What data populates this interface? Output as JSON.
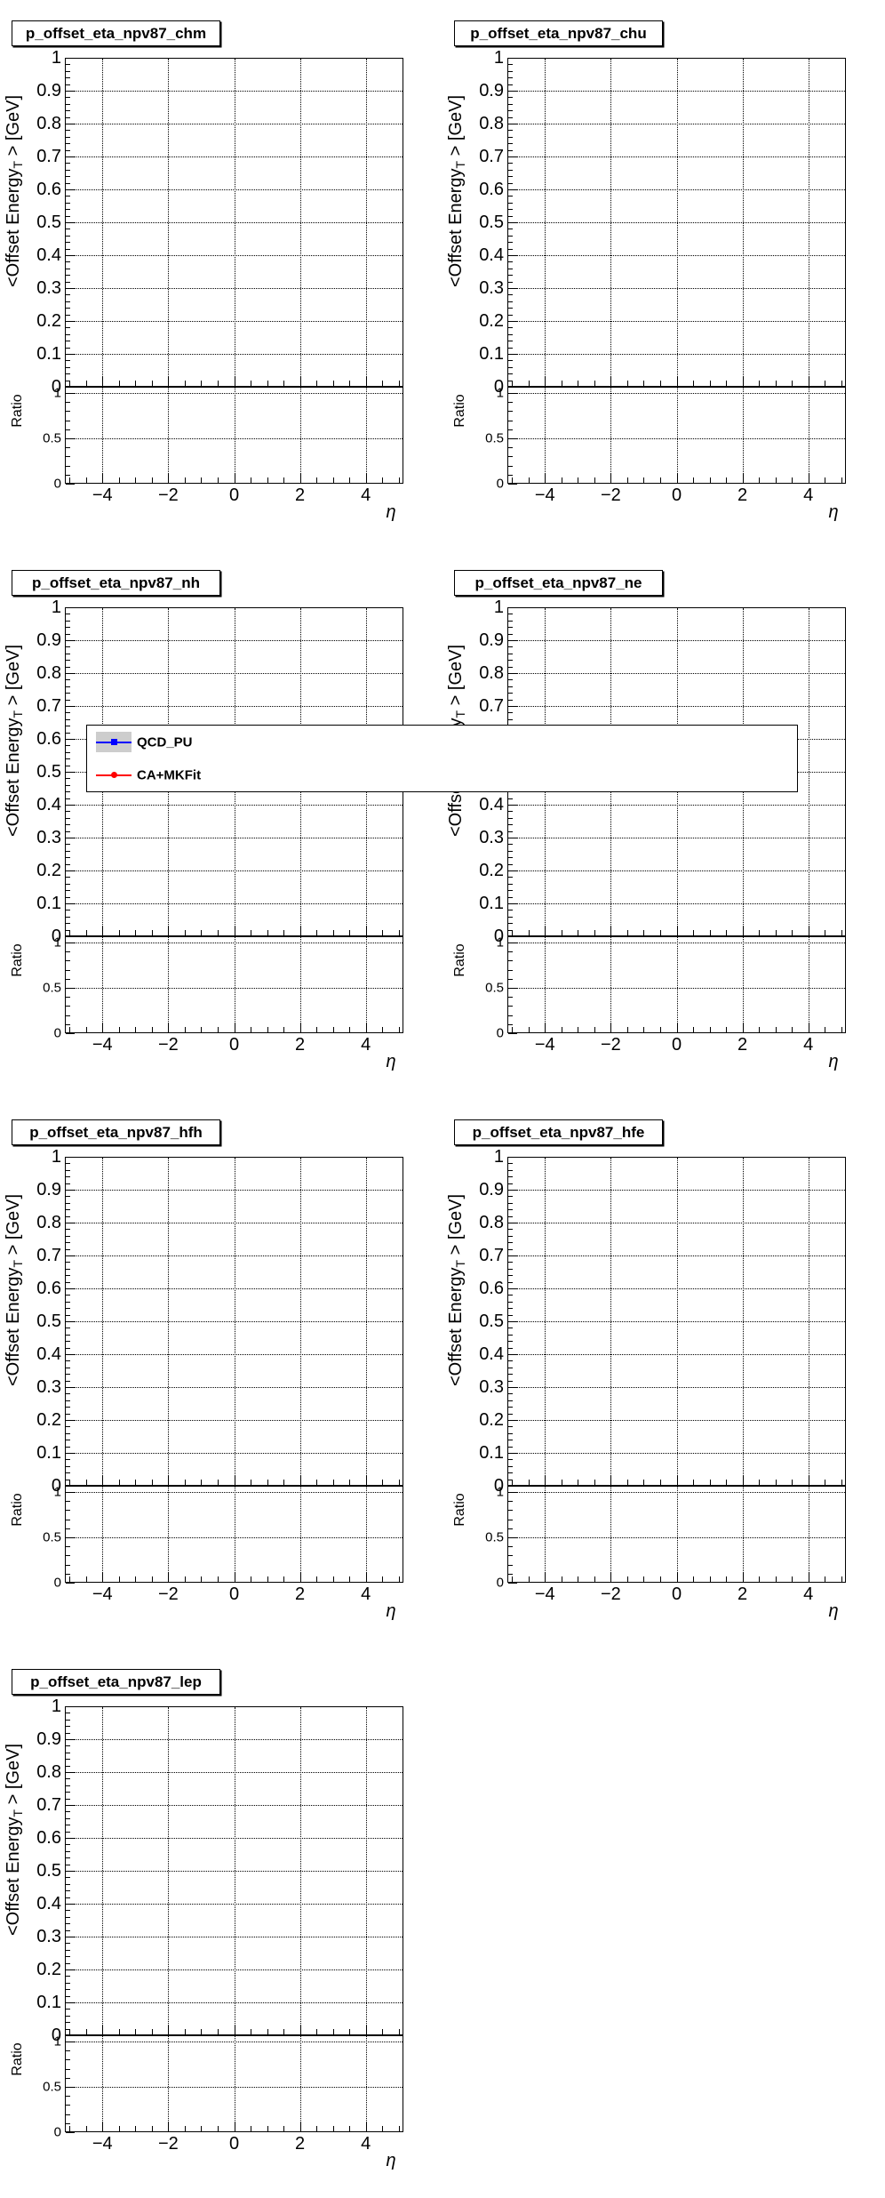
{
  "canvas": {
    "background": "#ffffff",
    "foreground": "#000000"
  },
  "pads": [
    {
      "title": "p_offset_eta_npv87_chm",
      "has_legend": false
    },
    {
      "title": "p_offset_eta_npv87_chu",
      "has_legend": false
    },
    {
      "title": "p_offset_eta_npv87_nh",
      "has_legend": true
    },
    {
      "title": "p_offset_eta_npv87_ne",
      "has_legend": false
    },
    {
      "title": "p_offset_eta_npv87_hfh",
      "has_legend": false
    },
    {
      "title": "p_offset_eta_npv87_hfe",
      "has_legend": false
    },
    {
      "title": "p_offset_eta_npv87_lep",
      "has_legend": false
    }
  ],
  "axes": {
    "main_y": {
      "title_prefix": "<Offset Energy",
      "title_sub": "T",
      "title_suffix": " > [GeV]",
      "tick_labels": [
        "1",
        "0.9",
        "0.8",
        "0.7",
        "0.6",
        "0.5",
        "0.4",
        "0.3",
        "0.2",
        "0.1",
        "0"
      ],
      "tick_values": [
        1,
        0.9,
        0.8,
        0.7,
        0.6,
        0.5,
        0.4,
        0.3,
        0.2,
        0.1,
        0
      ]
    },
    "ratio_y": {
      "title": "Ratio",
      "tick_labels": [
        "1",
        "0.5",
        "0"
      ],
      "tick_values": [
        1,
        0.5,
        0
      ]
    },
    "x": {
      "title": "η",
      "tick_labels": [
        "−4",
        "−2",
        "0",
        "2",
        "4"
      ],
      "tick_values": [
        -4,
        -2,
        0,
        2,
        4
      ]
    }
  },
  "legend": {
    "entries": [
      {
        "label": "QCD_PU",
        "line_color": "#0000ff",
        "marker": "square",
        "band_color": "#cdcdcd"
      },
      {
        "label": "CA+MKFit",
        "line_color": "#ff0000",
        "marker": "circle",
        "band_color": null
      }
    ]
  },
  "chart_data": [
    {
      "type": "scatter",
      "title": "p_offset_eta_npv87_chm",
      "xlabel": "η",
      "ylabel": "<Offset Energy_T> [GeV]",
      "xlim": [
        -5.14,
        5.14
      ],
      "xticks": [
        -4,
        -2,
        0,
        2,
        4
      ],
      "main_panel": {
        "ylim": [
          0,
          1
        ],
        "ytick_step": 0.1,
        "grid": true
      },
      "ratio_panel": {
        "ylabel": "Ratio",
        "ylim": [
          0,
          1.07
        ],
        "yticks": [
          0,
          0.5,
          1
        ],
        "grid": true
      },
      "series": [
        {
          "name": "QCD_PU",
          "color": "#0000ff",
          "points": []
        },
        {
          "name": "CA+MKFit",
          "color": "#ff0000",
          "points": []
        }
      ],
      "legend_shown": false
    },
    {
      "type": "scatter",
      "title": "p_offset_eta_npv87_chu",
      "xlabel": "η",
      "ylabel": "<Offset Energy_T> [GeV]",
      "xlim": [
        -5.14,
        5.14
      ],
      "xticks": [
        -4,
        -2,
        0,
        2,
        4
      ],
      "main_panel": {
        "ylim": [
          0,
          1
        ],
        "ytick_step": 0.1,
        "grid": true
      },
      "ratio_panel": {
        "ylabel": "Ratio",
        "ylim": [
          0,
          1.07
        ],
        "yticks": [
          0,
          0.5,
          1
        ],
        "grid": true
      },
      "series": [
        {
          "name": "QCD_PU",
          "color": "#0000ff",
          "points": []
        },
        {
          "name": "CA+MKFit",
          "color": "#ff0000",
          "points": []
        }
      ],
      "legend_shown": false
    },
    {
      "type": "scatter",
      "title": "p_offset_eta_npv87_nh",
      "xlabel": "η",
      "ylabel": "<Offset Energy_T> [GeV]",
      "xlim": [
        -5.14,
        5.14
      ],
      "xticks": [
        -4,
        -2,
        0,
        2,
        4
      ],
      "main_panel": {
        "ylim": [
          0,
          1
        ],
        "ytick_step": 0.1,
        "grid": true
      },
      "ratio_panel": {
        "ylabel": "Ratio",
        "ylim": [
          0,
          1.07
        ],
        "yticks": [
          0,
          0.5,
          1
        ],
        "grid": true
      },
      "series": [
        {
          "name": "QCD_PU",
          "color": "#0000ff",
          "points": []
        },
        {
          "name": "CA+MKFit",
          "color": "#ff0000",
          "points": []
        }
      ],
      "legend_shown": true
    },
    {
      "type": "scatter",
      "title": "p_offset_eta_npv87_ne",
      "xlabel": "η",
      "ylabel": "<Offset Energy_T> [GeV]",
      "xlim": [
        -5.14,
        5.14
      ],
      "xticks": [
        -4,
        -2,
        0,
        2,
        4
      ],
      "main_panel": {
        "ylim": [
          0,
          1
        ],
        "ytick_step": 0.1,
        "grid": true
      },
      "ratio_panel": {
        "ylabel": "Ratio",
        "ylim": [
          0,
          1.07
        ],
        "yticks": [
          0,
          0.5,
          1
        ],
        "grid": true
      },
      "series": [
        {
          "name": "QCD_PU",
          "color": "#0000ff",
          "points": []
        },
        {
          "name": "CA+MKFit",
          "color": "#ff0000",
          "points": []
        }
      ],
      "legend_shown": false
    },
    {
      "type": "scatter",
      "title": "p_offset_eta_npv87_hfh",
      "xlabel": "η",
      "ylabel": "<Offset Energy_T> [GeV]",
      "xlim": [
        -5.14,
        5.14
      ],
      "xticks": [
        -4,
        -2,
        0,
        2,
        4
      ],
      "main_panel": {
        "ylim": [
          0,
          1
        ],
        "ytick_step": 0.1,
        "grid": true
      },
      "ratio_panel": {
        "ylabel": "Ratio",
        "ylim": [
          0,
          1.07
        ],
        "yticks": [
          0,
          0.5,
          1
        ],
        "grid": true
      },
      "series": [
        {
          "name": "QCD_PU",
          "color": "#0000ff",
          "points": []
        },
        {
          "name": "CA+MKFit",
          "color": "#ff0000",
          "points": []
        }
      ],
      "legend_shown": false
    },
    {
      "type": "scatter",
      "title": "p_offset_eta_npv87_hfe",
      "xlabel": "η",
      "ylabel": "<Offset Energy_T> [GeV]",
      "xlim": [
        -5.14,
        5.14
      ],
      "xticks": [
        -4,
        -2,
        0,
        2,
        4
      ],
      "main_panel": {
        "ylim": [
          0,
          1
        ],
        "ytick_step": 0.1,
        "grid": true
      },
      "ratio_panel": {
        "ylabel": "Ratio",
        "ylim": [
          0,
          1.07
        ],
        "yticks": [
          0,
          0.5,
          1
        ],
        "grid": true
      },
      "series": [
        {
          "name": "QCD_PU",
          "color": "#0000ff",
          "points": []
        },
        {
          "name": "CA+MKFit",
          "color": "#ff0000",
          "points": []
        }
      ],
      "legend_shown": false
    },
    {
      "type": "scatter",
      "title": "p_offset_eta_npv87_lep",
      "xlabel": "η",
      "ylabel": "<Offset Energy_T> [GeV]",
      "xlim": [
        -5.14,
        5.14
      ],
      "xticks": [
        -4,
        -2,
        0,
        2,
        4
      ],
      "main_panel": {
        "ylim": [
          0,
          1
        ],
        "ytick_step": 0.1,
        "grid": true
      },
      "ratio_panel": {
        "ylabel": "Ratio",
        "ylim": [
          0,
          1.07
        ],
        "yticks": [
          0,
          0.5,
          1
        ],
        "grid": true
      },
      "series": [
        {
          "name": "QCD_PU",
          "color": "#0000ff",
          "points": []
        },
        {
          "name": "CA+MKFit",
          "color": "#ff0000",
          "points": []
        }
      ],
      "legend_shown": false
    }
  ]
}
